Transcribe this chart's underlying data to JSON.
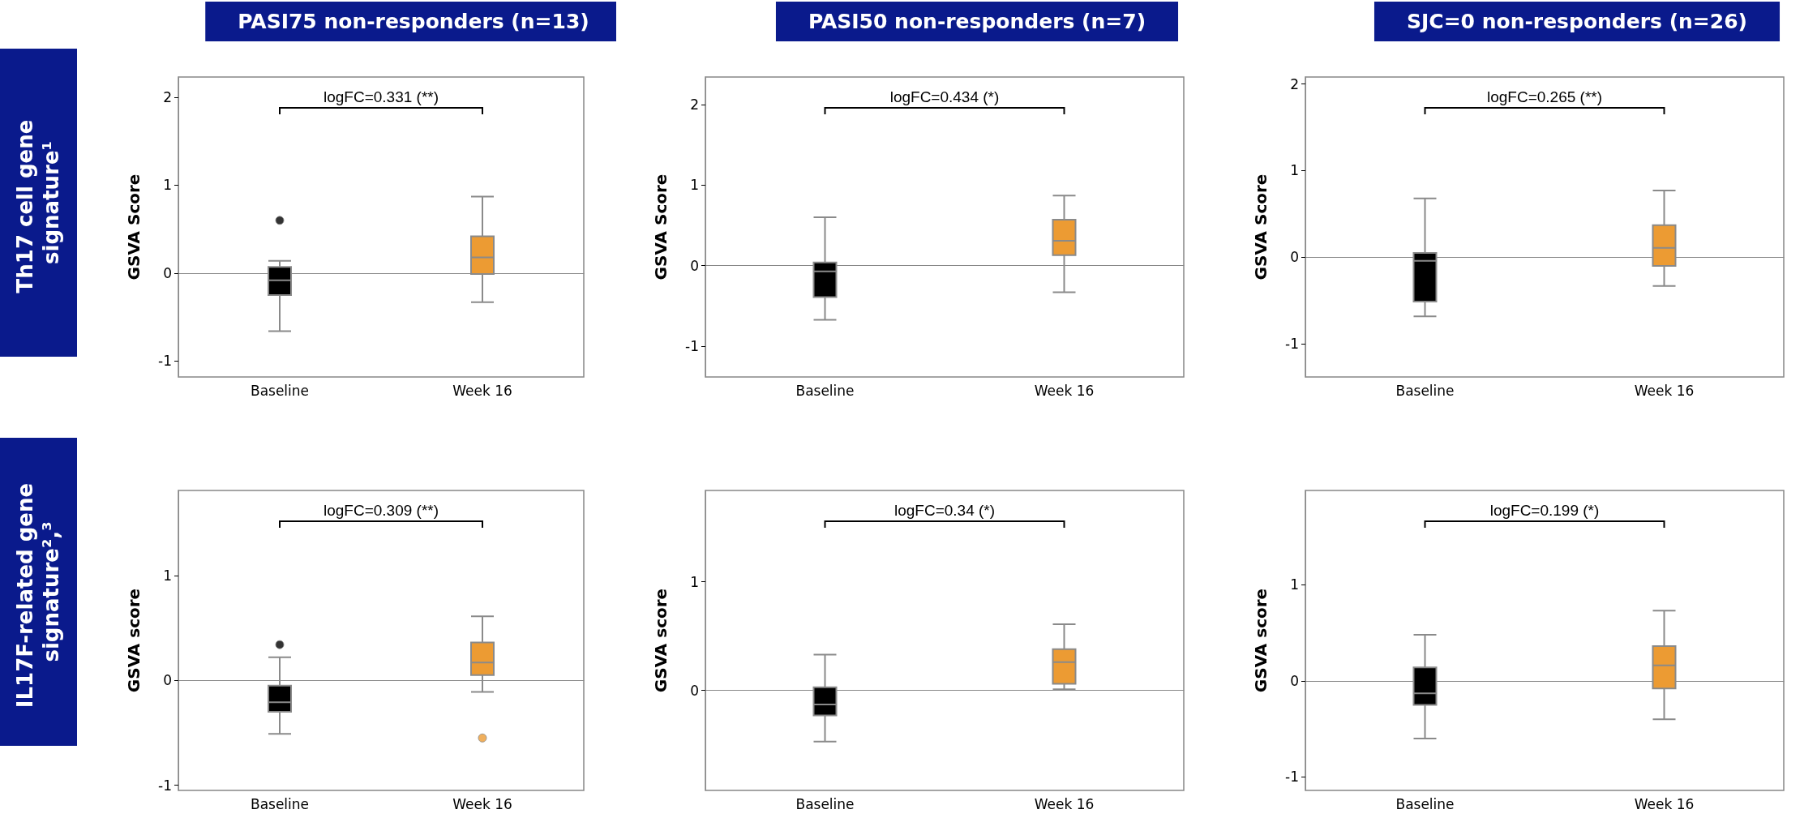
{
  "chart_data": [
    {
      "type": "box",
      "title": "PASI75 non-responders (n=13)",
      "ylabel": "GSVA Score",
      "categories": [
        "Baseline",
        "Week 16"
      ],
      "colors": [
        "#000000",
        "#ec9b33"
      ],
      "ylim": [
        -1.18,
        2.23
      ],
      "yticks": [
        -1,
        0,
        1,
        2
      ],
      "annotations": [
        "logFC=0.331 (**)",
        "Th17 cell gene signature¹"
      ],
      "boxes": [
        {
          "low": -0.66,
          "q1": -0.25,
          "median": -0.08,
          "q3": 0.07,
          "high": 0.14,
          "outliers": [
            0.6
          ]
        },
        {
          "low": -0.33,
          "q1": -0.01,
          "median": 0.18,
          "q3": 0.42,
          "high": 0.87
        }
      ]
    },
    {
      "type": "box",
      "title": "PASI50 non-responders (n=7)",
      "ylabel": "GSVA Score",
      "categories": [
        "Baseline",
        "Week 16"
      ],
      "colors": [
        "#000000",
        "#ec9b33"
      ],
      "ylim": [
        -1.38,
        2.34
      ],
      "yticks": [
        -1,
        0,
        1,
        2
      ],
      "annotations": [
        "logFC=0.434 (*)"
      ],
      "boxes": [
        {
          "low": -0.67,
          "q1": -0.39,
          "median": -0.07,
          "q3": 0.04,
          "high": 0.6
        },
        {
          "low": -0.33,
          "q1": 0.13,
          "median": 0.31,
          "q3": 0.57,
          "high": 0.87
        }
      ]
    },
    {
      "type": "box",
      "title": "SJC=0 non-responders (n=26)",
      "ylabel": "GSVA Score",
      "categories": [
        "Baseline",
        "Week 16"
      ],
      "colors": [
        "#000000",
        "#ec9b33"
      ],
      "ylim": [
        -1.38,
        2.08
      ],
      "yticks": [
        -1,
        0,
        1,
        2
      ],
      "annotations": [
        "logFC=0.265 (**)"
      ],
      "boxes": [
        {
          "low": -0.68,
          "q1": -0.51,
          "median": -0.04,
          "q3": 0.05,
          "high": 0.68
        },
        {
          "low": -0.33,
          "q1": -0.1,
          "median": 0.11,
          "q3": 0.37,
          "high": 0.77
        }
      ]
    },
    {
      "type": "box",
      "ylabel": "GSVA score",
      "categories": [
        "Baseline",
        "Week 16"
      ],
      "colors": [
        "#000000",
        "#ec9b33"
      ],
      "ylim": [
        -1.05,
        1.81
      ],
      "yticks": [
        -1,
        0,
        1
      ],
      "annotations": [
        "logFC=0.309 (**)",
        "IL17F-related gene signature²,³"
      ],
      "boxes": [
        {
          "low": -0.51,
          "q1": -0.3,
          "median": -0.21,
          "q3": -0.05,
          "high": 0.22,
          "outliers": [
            0.34
          ]
        },
        {
          "low": -0.11,
          "q1": 0.05,
          "median": 0.17,
          "q3": 0.36,
          "high": 0.61,
          "outliers": [
            -0.55
          ]
        }
      ]
    },
    {
      "type": "box",
      "ylabel": "GSVA score",
      "categories": [
        "Baseline",
        "Week 16"
      ],
      "colors": [
        "#000000",
        "#ec9b33"
      ],
      "ylim": [
        -0.92,
        1.84
      ],
      "yticks": [
        0,
        1
      ],
      "annotations": [
        "logFC=0.34 (*)"
      ],
      "boxes": [
        {
          "low": -0.47,
          "q1": -0.23,
          "median": -0.13,
          "q3": 0.03,
          "high": 0.33
        },
        {
          "low": 0.01,
          "q1": 0.06,
          "median": 0.26,
          "q3": 0.38,
          "high": 0.61
        }
      ]
    },
    {
      "type": "box",
      "ylabel": "GSVA score",
      "categories": [
        "Baseline",
        "Week 16"
      ],
      "colors": [
        "#000000",
        "#ec9b33"
      ],
      "ylim": [
        -1.14,
        1.98
      ],
      "yticks": [
        -1,
        0,
        1
      ],
      "annotations": [
        "logFC=0.199 (*)"
      ],
      "boxes": [
        {
          "low": -0.6,
          "q1": -0.25,
          "median": -0.13,
          "q3": 0.14,
          "high": 0.48
        },
        {
          "low": -0.4,
          "q1": -0.08,
          "median": 0.16,
          "q3": 0.36,
          "high": 0.73
        }
      ]
    }
  ]
}
